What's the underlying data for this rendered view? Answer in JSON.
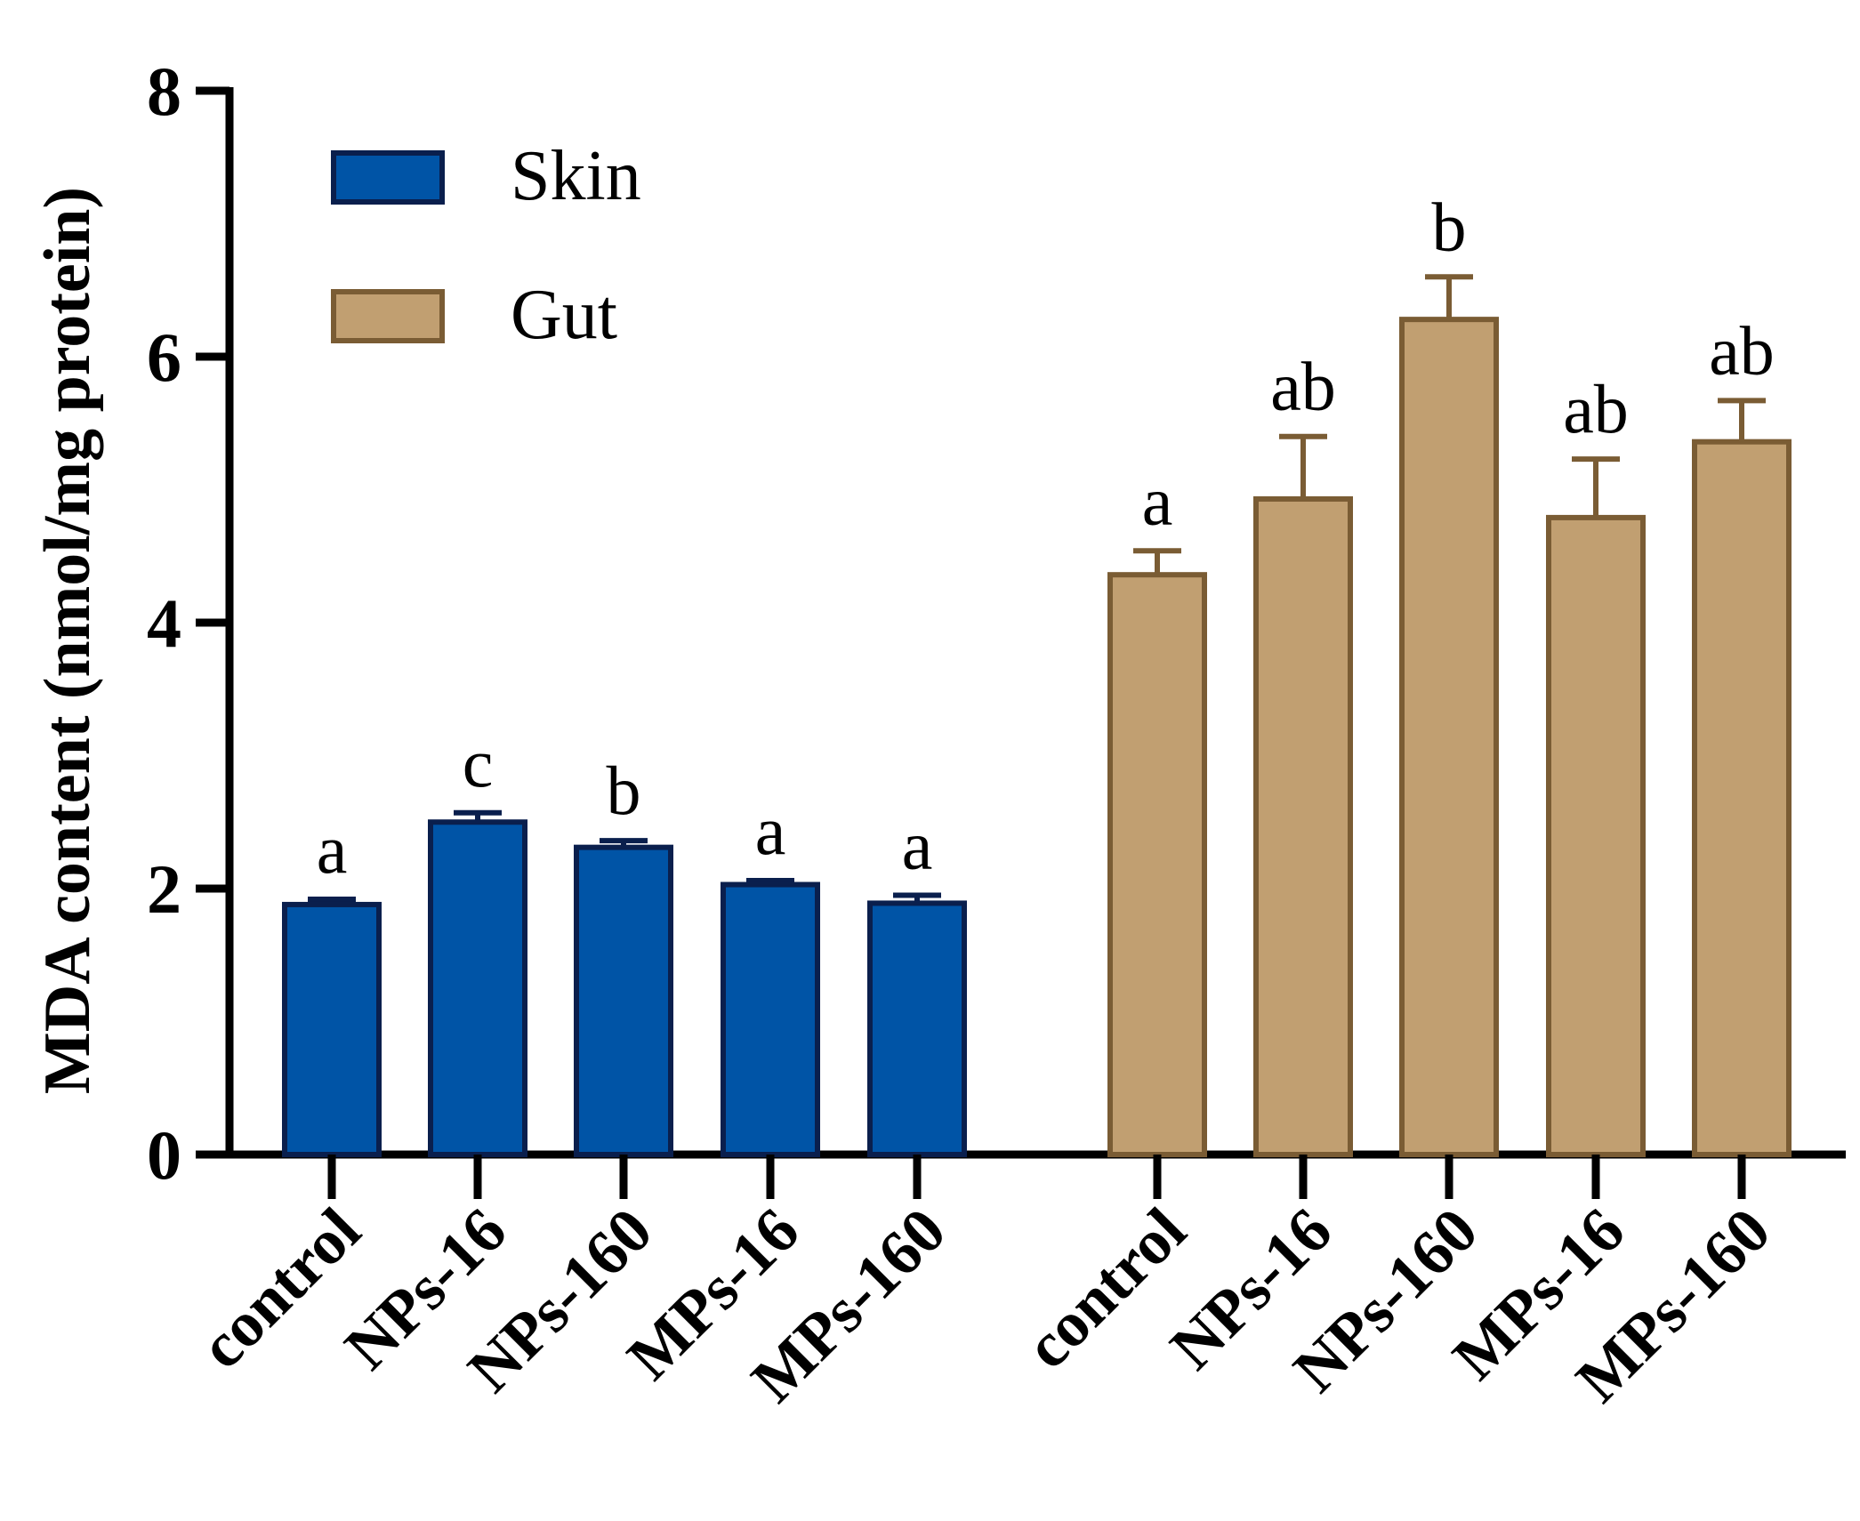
{
  "chart_data": {
    "type": "bar",
    "title": "",
    "xlabel": "",
    "ylabel": "MDA content (nmol/mg protein)",
    "ylim": [
      0,
      8
    ],
    "yticks": [
      0,
      2,
      4,
      6,
      8
    ],
    "grid": false,
    "legend_position": "top-left",
    "categories": [
      "control",
      "NPs-16",
      "NPs-160",
      "MPs-16",
      "MPs-160"
    ],
    "series": [
      {
        "name": "Skin",
        "color": "#0054a6",
        "edge_color": "#0a1f4d",
        "values": [
          1.88,
          2.5,
          2.31,
          2.03,
          1.89
        ],
        "errors": [
          0.04,
          0.07,
          0.05,
          0.03,
          0.06
        ],
        "significance": [
          "a",
          "c",
          "b",
          "a",
          "a"
        ]
      },
      {
        "name": "Gut",
        "color": "#c19f71",
        "edge_color": "#7a5c34",
        "values": [
          4.36,
          4.93,
          6.28,
          4.79,
          5.36
        ],
        "errors": [
          0.18,
          0.47,
          0.32,
          0.44,
          0.31
        ],
        "significance": [
          "a",
          "ab",
          "b",
          "ab",
          "ab"
        ]
      }
    ]
  }
}
